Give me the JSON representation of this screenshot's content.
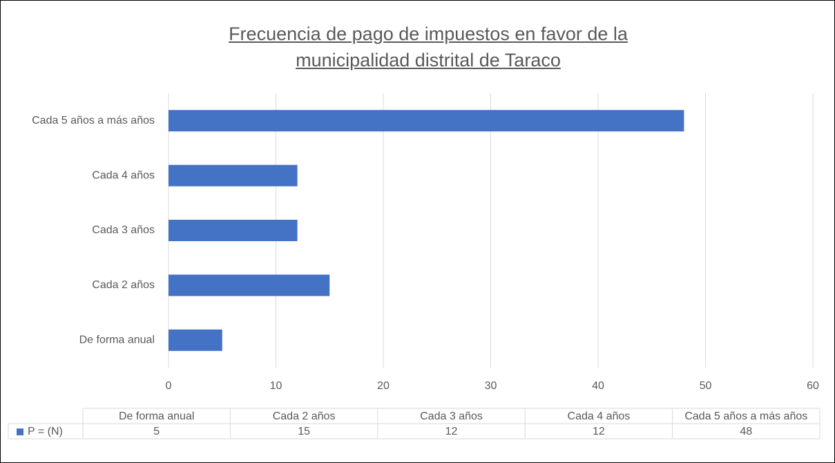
{
  "chart_data": {
    "type": "bar",
    "title": "Frecuencia de pago de impuestos en favor de la municipalidad distrital de Taraco",
    "categories": [
      "De forma anual",
      "Cada 2 años",
      "Cada 3 años",
      "Cada 4 años",
      "Cada 5 años a más años"
    ],
    "series": [
      {
        "name": "P = (N)",
        "color": "#4472c4",
        "values": [
          5,
          15,
          12,
          12,
          48
        ]
      }
    ],
    "xlim": [
      0,
      60
    ],
    "xticks": [
      0,
      10,
      20,
      30,
      40,
      50,
      60
    ],
    "grid": true
  }
}
